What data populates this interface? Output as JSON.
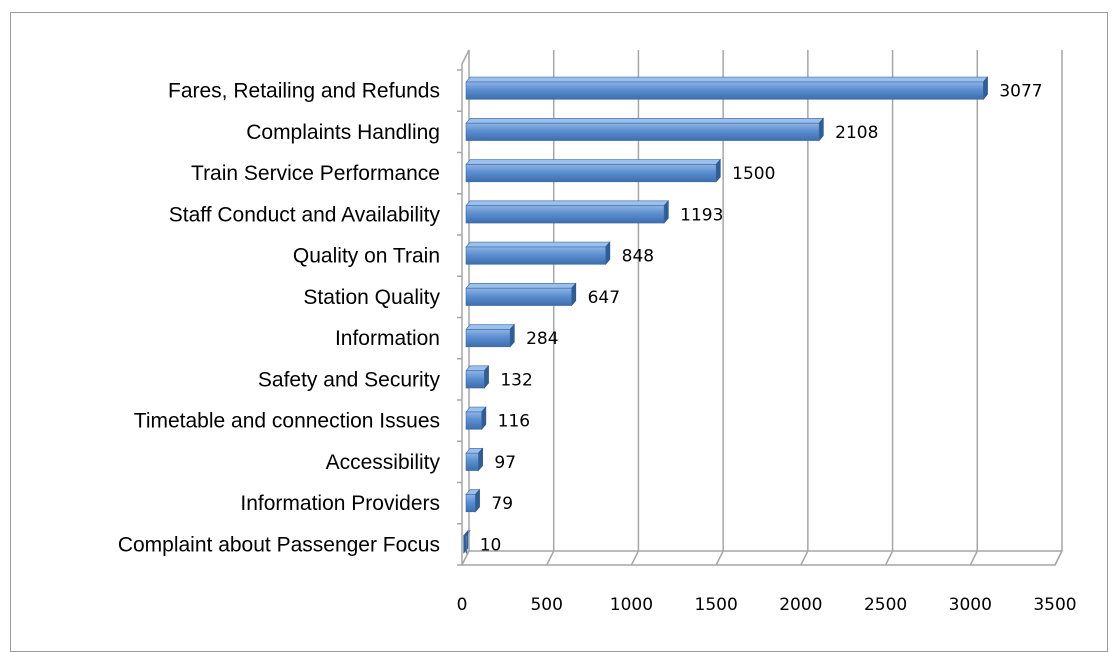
{
  "chart_data": {
    "type": "bar",
    "orientation": "horizontal",
    "style": "3d",
    "categories": [
      "Fares, Retailing and Refunds",
      "Complaints Handling",
      "Train Service Performance",
      "Staff Conduct and Availability",
      "Quality on Train",
      "Station Quality",
      "Information",
      "Safety and Security",
      "Timetable and connection Issues",
      "Accessibility",
      "Information Providers",
      "Complaint about Passenger Focus"
    ],
    "values": [
      3077,
      2108,
      1500,
      1193,
      848,
      647,
      284,
      132,
      116,
      97,
      79,
      10
    ],
    "data_labels": [
      "3077",
      "2108",
      "1500",
      "1193",
      "848",
      "647",
      "284",
      "132",
      "116",
      "97",
      "79",
      "10"
    ],
    "xlim": [
      0,
      3500
    ],
    "x_ticks": [
      "0",
      "500",
      "1000",
      "1500",
      "2000",
      "2500",
      "3000",
      "3500"
    ],
    "grid": true,
    "legend": "none",
    "bar_color": "#4f81bd"
  }
}
